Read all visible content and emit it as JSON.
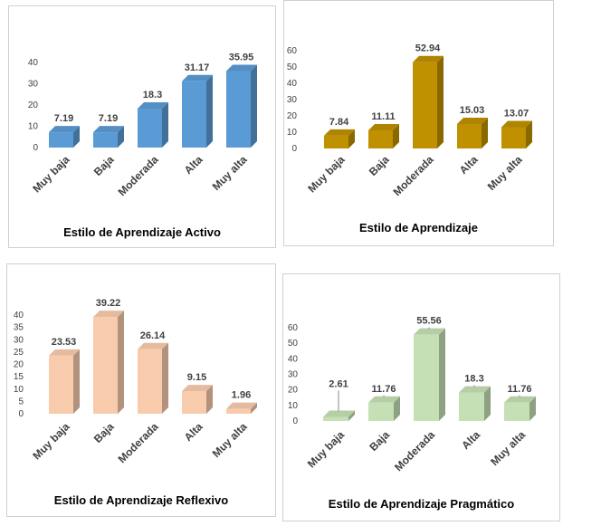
{
  "chart_data": [
    {
      "type": "bar",
      "title": "Estilo de Aprendizaje Activo",
      "categories": [
        "Muy baja",
        "Baja",
        "Moderada",
        "Alta",
        "Muy alta"
      ],
      "values": [
        7.19,
        7.19,
        18.3,
        31.17,
        35.95
      ],
      "value_labels": [
        "7.19",
        "7.19",
        "18.3",
        "31.17",
        "35.95"
      ],
      "ylim": [
        0,
        40
      ],
      "yticks": [
        0,
        10,
        20,
        30,
        40
      ],
      "color": "#5b9bd5",
      "xlabel": "",
      "ylabel": ""
    },
    {
      "type": "bar",
      "title": "Estilo de Aprendizaje",
      "categories": [
        "Muy baja",
        "Baja",
        "Moderada",
        "Alta",
        "Muy alta"
      ],
      "values": [
        7.84,
        11.11,
        52.94,
        15.03,
        13.07
      ],
      "value_labels": [
        "7.84",
        "11.11",
        "52.94",
        "15.03",
        "13.07"
      ],
      "ylim": [
        0,
        60
      ],
      "yticks": [
        0,
        10,
        20,
        30,
        40,
        50,
        60
      ],
      "color": "#bf9000",
      "xlabel": "",
      "ylabel": ""
    },
    {
      "type": "bar",
      "title": "Estilo de Aprendizaje Reflexivo",
      "categories": [
        "Muy baja",
        "Baja",
        "Moderada",
        "Alta",
        "Muy alta"
      ],
      "values": [
        23.53,
        39.22,
        26.14,
        9.15,
        1.96
      ],
      "value_labels": [
        "23.53",
        "39.22",
        "26.14",
        "9.15",
        "1.96"
      ],
      "ylim": [
        0,
        40
      ],
      "yticks": [
        0,
        5,
        10,
        15,
        20,
        25,
        30,
        35,
        40
      ],
      "color": "#f8cbad",
      "xlabel": "",
      "ylabel": ""
    },
    {
      "type": "bar",
      "title": "Estilo de Aprendizaje Pragmático",
      "categories": [
        "Muy baja",
        "Baja",
        "Moderada",
        "Alta",
        "Muy alta"
      ],
      "values": [
        2.61,
        11.76,
        55.56,
        18.3,
        11.76
      ],
      "value_labels": [
        "2.61",
        "11.76",
        "55.56",
        "18.3",
        "11.76"
      ],
      "ylim": [
        0,
        60
      ],
      "yticks": [
        0,
        10,
        20,
        30,
        40,
        50,
        60
      ],
      "color": "#c5e0b4",
      "xlabel": "",
      "ylabel": ""
    }
  ]
}
